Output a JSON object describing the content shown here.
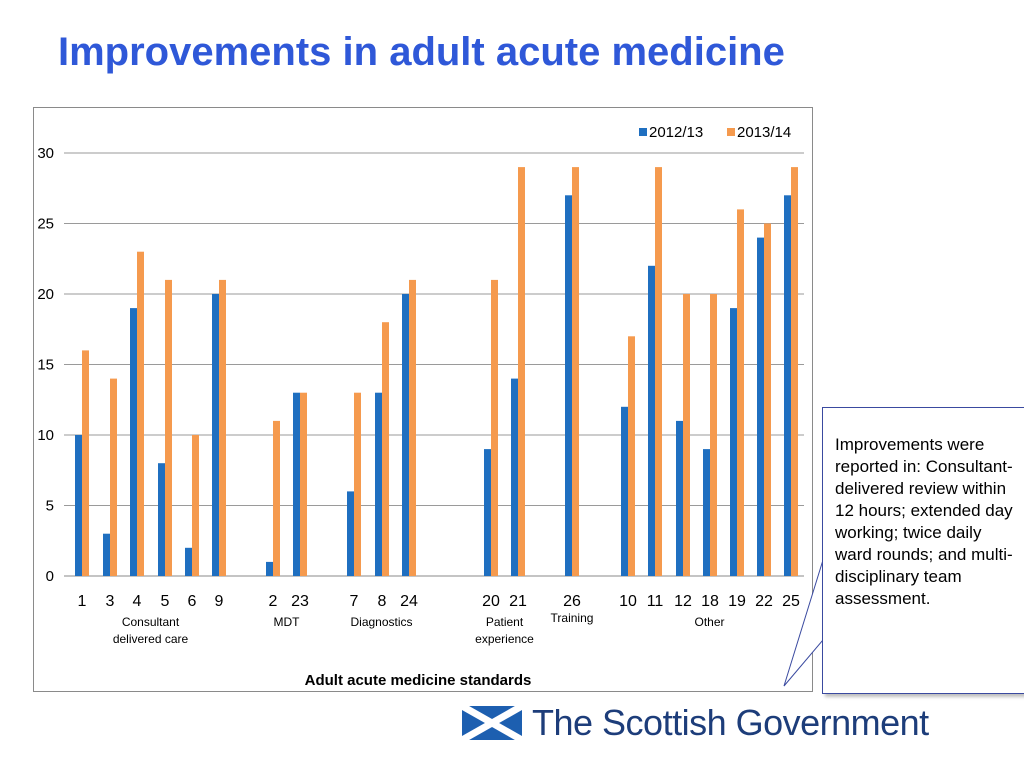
{
  "page": {
    "title": "Improvements in adult acute medicine",
    "callout": "Improvements were reported in: Consultant-delivered review within 12 hours; extended day working; twice daily ward rounds; and multi-disciplinary team assessment.",
    "logo_text": "The Scottish Government"
  },
  "chart_data": {
    "type": "bar",
    "title": "",
    "xlabel": "Adult acute medicine standards",
    "ylabel": "",
    "ylim": [
      0,
      30
    ],
    "yticks": [
      0,
      5,
      10,
      15,
      20,
      25,
      30
    ],
    "grid": true,
    "legend_position": "top-right",
    "categories": [
      "1",
      "3",
      "4",
      "5",
      "6",
      "9",
      "2",
      "23",
      "7",
      "8",
      "24",
      "20",
      "21",
      "26",
      "10",
      "11",
      "12",
      "18",
      "19",
      "22",
      "25"
    ],
    "groups": [
      {
        "label": "Consultant\ndelivered care",
        "categories": [
          "1",
          "3",
          "4",
          "5",
          "6",
          "9"
        ]
      },
      {
        "label": "MDT",
        "categories": [
          "2",
          "23"
        ]
      },
      {
        "label": "Diagnostics",
        "categories": [
          "7",
          "8",
          "24"
        ]
      },
      {
        "label": "Patient\nexperience",
        "categories": [
          "20",
          "21"
        ]
      },
      {
        "label": "Training",
        "categories": [
          "26"
        ]
      },
      {
        "label": "Other",
        "categories": [
          "10",
          "11",
          "12",
          "18",
          "19",
          "22",
          "25"
        ]
      }
    ],
    "series": [
      {
        "name": "2012/13",
        "color": "#1f6fc0",
        "values": [
          10,
          3,
          19,
          8,
          2,
          20,
          1,
          13,
          6,
          13,
          20,
          9,
          14,
          27,
          12,
          22,
          11,
          9,
          19,
          24,
          27
        ]
      },
      {
        "name": "2013/14",
        "color": "#f59a4e",
        "values": [
          16,
          14,
          23,
          21,
          10,
          21,
          11,
          13,
          13,
          18,
          21,
          21,
          29,
          29,
          17,
          29,
          20,
          20,
          26,
          25,
          29
        ]
      }
    ]
  }
}
